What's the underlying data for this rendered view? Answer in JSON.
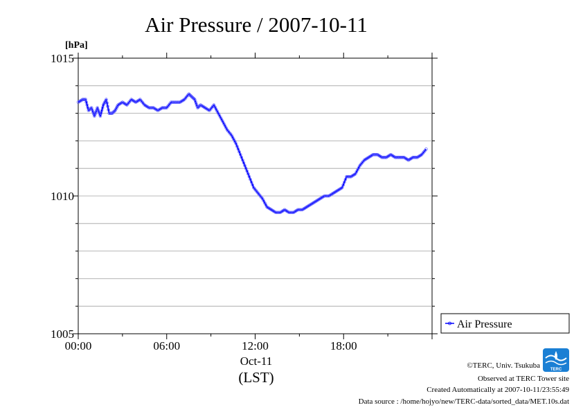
{
  "chart_data": {
    "type": "line",
    "title": "Air Pressure / 2007-10-11",
    "ylabel": "[hPa]",
    "xlabel": "(LST)",
    "date_label": "Oct-11",
    "ylim": [
      1005,
      1015
    ],
    "y_ticks": [
      1005,
      1010,
      1015
    ],
    "y_tick_labels": [
      "1005",
      "1010",
      "1015"
    ],
    "y_grid_step": 1,
    "xlim": [
      0,
      24
    ],
    "x_ticks": [
      0,
      6,
      12,
      18
    ],
    "x_tick_labels": [
      "00:00",
      "06:00",
      "12:00",
      "18:00"
    ],
    "grid": "horizontal",
    "legend_position": "right",
    "series": [
      {
        "name": "Air Pressure",
        "color": "#0000ff",
        "x": [
          0.0,
          0.3,
          0.5,
          0.7,
          0.9,
          1.1,
          1.3,
          1.5,
          1.7,
          1.9,
          2.1,
          2.3,
          2.5,
          2.7,
          3.0,
          3.3,
          3.6,
          3.9,
          4.2,
          4.5,
          4.8,
          5.1,
          5.4,
          5.7,
          6.0,
          6.3,
          6.6,
          6.9,
          7.2,
          7.5,
          7.7,
          7.9,
          8.1,
          8.3,
          8.6,
          8.9,
          9.2,
          9.5,
          9.8,
          10.1,
          10.4,
          10.7,
          11.0,
          11.3,
          11.6,
          11.9,
          12.2,
          12.5,
          12.8,
          13.1,
          13.4,
          13.7,
          14.0,
          14.3,
          14.6,
          14.9,
          15.2,
          15.5,
          15.8,
          16.1,
          16.4,
          16.7,
          17.0,
          17.3,
          17.6,
          17.9,
          18.2,
          18.5,
          18.8,
          19.1,
          19.4,
          19.7,
          20.0,
          20.3,
          20.6,
          20.9,
          21.2,
          21.5,
          21.8,
          22.1,
          22.4,
          22.7,
          23.0,
          23.3,
          23.6
        ],
        "values": [
          1013.4,
          1013.5,
          1013.5,
          1013.1,
          1013.2,
          1012.9,
          1013.2,
          1012.9,
          1013.3,
          1013.5,
          1013.0,
          1013.0,
          1013.1,
          1013.3,
          1013.4,
          1013.3,
          1013.5,
          1013.4,
          1013.5,
          1013.3,
          1013.2,
          1013.2,
          1013.1,
          1013.2,
          1013.2,
          1013.4,
          1013.4,
          1013.4,
          1013.5,
          1013.7,
          1013.6,
          1013.5,
          1013.2,
          1013.3,
          1013.2,
          1013.1,
          1013.3,
          1013.0,
          1012.7,
          1012.4,
          1012.2,
          1011.9,
          1011.5,
          1011.1,
          1010.7,
          1010.3,
          1010.1,
          1009.9,
          1009.6,
          1009.5,
          1009.4,
          1009.4,
          1009.5,
          1009.4,
          1009.4,
          1009.5,
          1009.5,
          1009.6,
          1009.7,
          1009.8,
          1009.9,
          1010.0,
          1010.0,
          1010.1,
          1010.2,
          1010.3,
          1010.7,
          1010.7,
          1010.8,
          1011.1,
          1011.3,
          1011.4,
          1011.5,
          1011.5,
          1011.4,
          1011.4,
          1011.5,
          1011.4,
          1011.4,
          1011.4,
          1011.3,
          1011.4,
          1011.4,
          1011.5,
          1011.7
        ]
      }
    ]
  },
  "legend": {
    "label": "Air Pressure"
  },
  "footer": {
    "copyright": "©TERC, Univ. Tsukuba",
    "observed": "Observed at TERC Tower site",
    "created": "Created Automatically at 2007-10-11/23:55:49",
    "source": "Data source : /home/hojyo/new/TERC-data/sorted_data/MET.10s.dat",
    "logo_text": "TERC"
  }
}
